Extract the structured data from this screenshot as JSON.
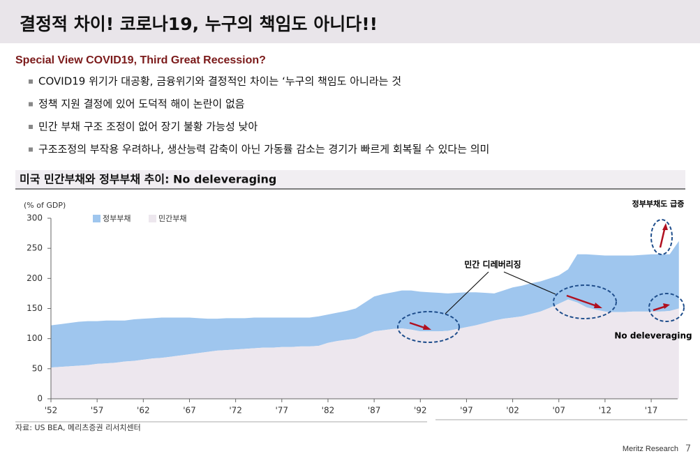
{
  "title": "결정적 차이! 코로나19, 누구의 책임도 아니다!!",
  "subtitle": "Special View COVID19, Third Great Recession?",
  "bullets": [
    "COVID19 위기가 대공황, 금융위기와 결정적인 차이는 ‘누구의 책임도 아니라는 것",
    "정책 지원 결정에 있어 도덕적 해이 논란이 없음",
    "민간 부채 구조 조정이 없어 장기 불황 가능성 낮아",
    "구조조정의 부작용 우려하나, 생산능력 감축이 아닌 가동률 감소는 경기가 빠르게 회복될 수 있다는 의미"
  ],
  "chart_data": {
    "type": "stacked_area",
    "title": "미국 민간부채와 정부부채 추이: No deleveraging",
    "y_label": "(% of GDP)",
    "x": [
      1952,
      1953,
      1954,
      1955,
      1956,
      1957,
      1958,
      1959,
      1960,
      1961,
      1962,
      1963,
      1964,
      1965,
      1966,
      1967,
      1968,
      1969,
      1970,
      1971,
      1972,
      1973,
      1974,
      1975,
      1976,
      1977,
      1978,
      1979,
      1980,
      1981,
      1982,
      1983,
      1984,
      1985,
      1986,
      1987,
      1988,
      1989,
      1990,
      1991,
      1992,
      1993,
      1994,
      1995,
      1996,
      1997,
      1998,
      1999,
      2000,
      2001,
      2002,
      2003,
      2004,
      2005,
      2006,
      2007,
      2008,
      2009,
      2010,
      2011,
      2012,
      2013,
      2014,
      2015,
      2016,
      2017,
      2018,
      2019,
      2020
    ],
    "series": [
      {
        "name": "정부부채",
        "color": "#9fc6ee",
        "values": [
          70,
          71,
          72,
          73,
          73,
          71,
          71,
          70,
          68,
          69,
          68,
          67,
          67,
          65,
          63,
          61,
          58,
          55,
          53,
          53,
          52,
          51,
          51,
          50,
          50,
          49,
          49,
          48,
          48,
          49,
          47,
          47,
          48,
          50,
          54,
          58,
          60,
          61,
          63,
          65,
          66,
          65,
          64,
          62,
          60,
          58,
          55,
          50,
          45,
          47,
          50,
          51,
          51,
          50,
          49,
          47,
          50,
          80,
          88,
          91,
          93,
          94,
          94,
          93,
          94,
          95,
          95,
          94,
          112
        ]
      },
      {
        "name": "민간부채",
        "color": "#ede7ee",
        "values": [
          52,
          53,
          54,
          55,
          56,
          58,
          59,
          60,
          62,
          63,
          65,
          67,
          68,
          70,
          72,
          74,
          76,
          78,
          80,
          81,
          82,
          83,
          84,
          85,
          85,
          86,
          86,
          87,
          87,
          88,
          93,
          96,
          98,
          100,
          106,
          112,
          114,
          116,
          117,
          115,
          112,
          112,
          112,
          113,
          116,
          119,
          122,
          126,
          130,
          133,
          135,
          137,
          141,
          145,
          151,
          158,
          165,
          160,
          152,
          148,
          145,
          144,
          144,
          145,
          145,
          145,
          145,
          146,
          150
        ]
      }
    ],
    "xlim": [
      1952,
      2021
    ],
    "xticks": [
      {
        "value": 1952,
        "label": "'52"
      },
      {
        "value": 1957,
        "label": "'57"
      },
      {
        "value": 1962,
        "label": "'62"
      },
      {
        "value": 1967,
        "label": "'67"
      },
      {
        "value": 1972,
        "label": "'72"
      },
      {
        "value": 1977,
        "label": "'77"
      },
      {
        "value": 1982,
        "label": "'82"
      },
      {
        "value": 1987,
        "label": "'87"
      },
      {
        "value": 1992,
        "label": "'92"
      },
      {
        "value": 1997,
        "label": "'97"
      },
      {
        "value": 2002,
        "label": "'02"
      },
      {
        "value": 2007,
        "label": "'07"
      },
      {
        "value": 2012,
        "label": "'12"
      },
      {
        "value": 2017,
        "label": "'17"
      }
    ],
    "ylim": [
      0,
      300
    ],
    "yticks": [
      0,
      50,
      100,
      150,
      200,
      250,
      300
    ],
    "annotations": [
      "민간 디레버리징",
      "정부부채도 급증",
      "No deleveraging"
    ]
  },
  "source": "자료: US BEA, 메리츠증권 리서치센터",
  "footer": "Meritz Research",
  "page_number": 7
}
